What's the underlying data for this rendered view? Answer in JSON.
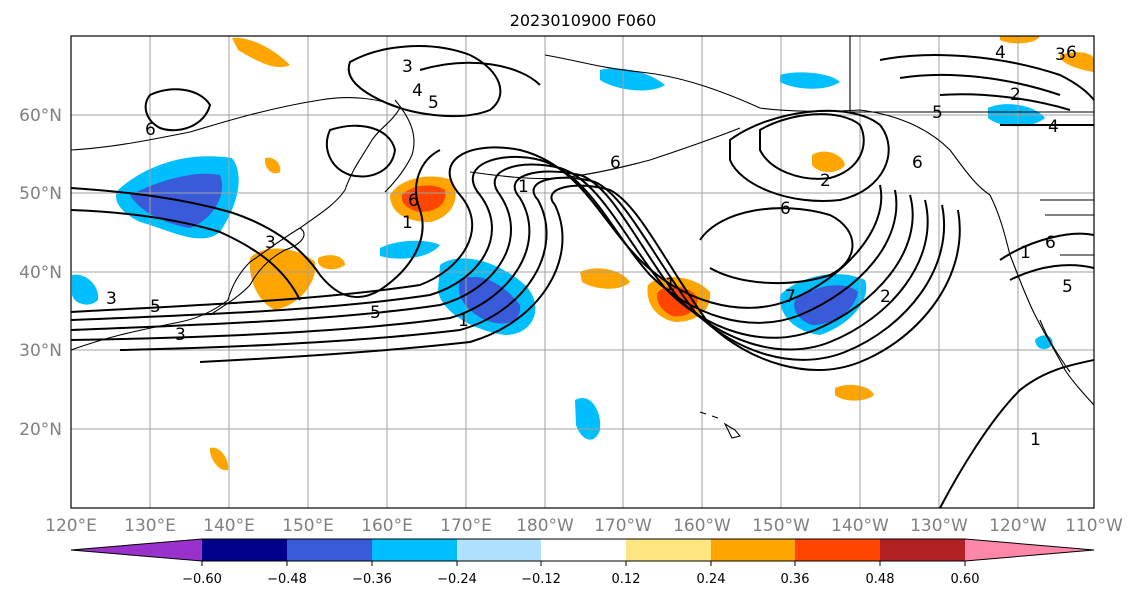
{
  "title": "2023010900 F060",
  "map": {
    "lon_range_deg_east": [
      120,
      250
    ],
    "lat_range": [
      10,
      70
    ],
    "grid": true,
    "lon_tick_labels": [
      "120°E",
      "130°E",
      "140°E",
      "150°E",
      "160°E",
      "170°E",
      "180°W",
      "170°W",
      "160°W",
      "150°W",
      "140°W",
      "130°W",
      "120°W",
      "110°W"
    ],
    "lat_tick_labels": [
      "20°N",
      "30°N",
      "40°N",
      "50°N",
      "60°N"
    ],
    "contour_labels": [
      "3",
      "4",
      "5",
      "6",
      "6",
      "4",
      "3",
      "2",
      "4",
      "5",
      "6",
      "1",
      "6",
      "6",
      "1",
      "5",
      "1",
      "3",
      "3",
      "3",
      "5",
      "1",
      "2",
      "6",
      "2",
      "1",
      "6",
      "7",
      "5",
      "1"
    ],
    "shading_note": "filled anomaly field, colored by colorbar"
  },
  "colorbar": {
    "tick_labels": [
      "−0.60",
      "−0.48",
      "−0.36",
      "−0.24",
      "−0.12",
      "0.12",
      "0.24",
      "0.36",
      "0.48",
      "0.60"
    ],
    "levels": [
      -0.6,
      -0.48,
      -0.36,
      -0.24,
      -0.12,
      0.12,
      0.24,
      0.36,
      0.48,
      0.6
    ],
    "colors": [
      "#9932CC",
      "#00008B",
      "#3A5BD9",
      "#00BFFF",
      "#B0E2FF",
      "#FFFFFF",
      "#FFE680",
      "#FFA500",
      "#FF4500",
      "#B22222",
      "#FF88AA"
    ],
    "extend": "both"
  }
}
